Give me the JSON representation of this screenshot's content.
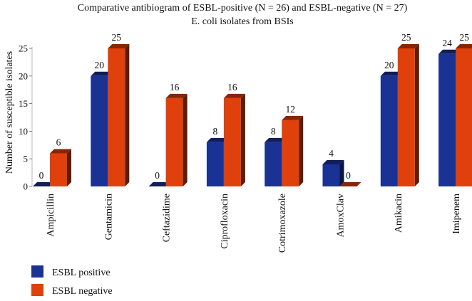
{
  "chart_data": {
    "type": "bar",
    "title_line1": "Comparative antibiogram of ESBL-positive (N = 26) and ESBL-negative (N = 27)",
    "title_line2": "E. coli isolates from BSIs",
    "xlabel": "",
    "ylabel": "Number of susceptible isolates",
    "ylim": [
      0,
      25
    ],
    "yticks": [
      0,
      5,
      10,
      15,
      20,
      25
    ],
    "categories": [
      "Ampicillin",
      "Gentamicin",
      "Ceftazidime",
      "Ciprofloxacin",
      "Cotrimoxazole",
      "AmoxClav",
      "Amikacin",
      "Imipenem"
    ],
    "series": [
      {
        "name": "ESBL positive",
        "values": [
          0,
          20,
          0,
          8,
          8,
          4,
          20,
          24
        ],
        "color": "#1a3294"
      },
      {
        "name": "ESBL negative",
        "values": [
          6,
          25,
          16,
          16,
          12,
          0,
          25,
          25
        ],
        "color": "#e0400c"
      }
    ],
    "grid": false,
    "legend_position": "bottom-left"
  }
}
